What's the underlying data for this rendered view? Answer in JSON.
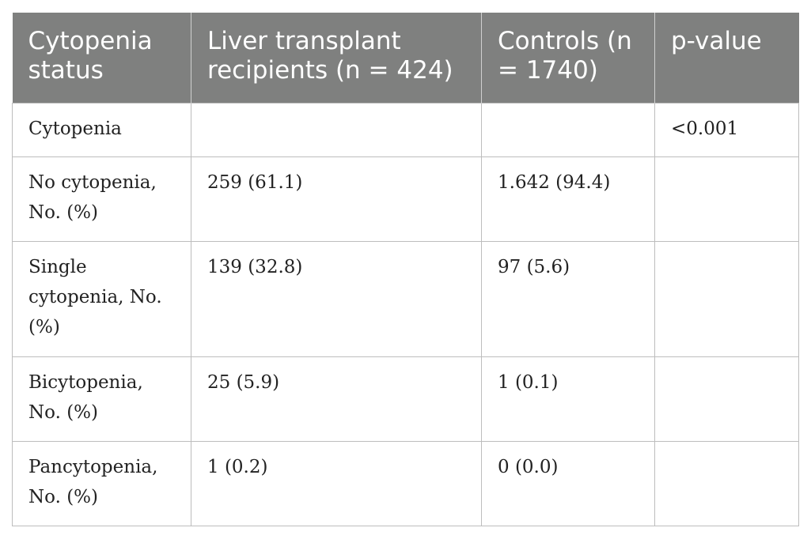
{
  "table": {
    "headers": [
      "Cytopenia status",
      "Liver transplant recipients (n = 424)",
      "Controls (n = 1740)",
      "p-value"
    ],
    "rows": [
      [
        "Cytopenia",
        "",
        "",
        "<0.001"
      ],
      [
        "No cytopenia, No. (%)",
        "259 (61.1)",
        "1.642 (94.4)",
        ""
      ],
      [
        "Single cytopenia, No. (%)",
        "139 (32.8)",
        "97 (5.6)",
        ""
      ],
      [
        "Bicytopenia, No. (%)",
        "25 (5.9)",
        "1 (0.1)",
        ""
      ],
      [
        "Pancytopenia, No. (%)",
        "1 (0.2)",
        "0 (0.0)",
        ""
      ]
    ]
  },
  "colors": {
    "header_bg": "#7f807f",
    "header_text": "#ffffff",
    "grid": "#bdbdbd"
  }
}
